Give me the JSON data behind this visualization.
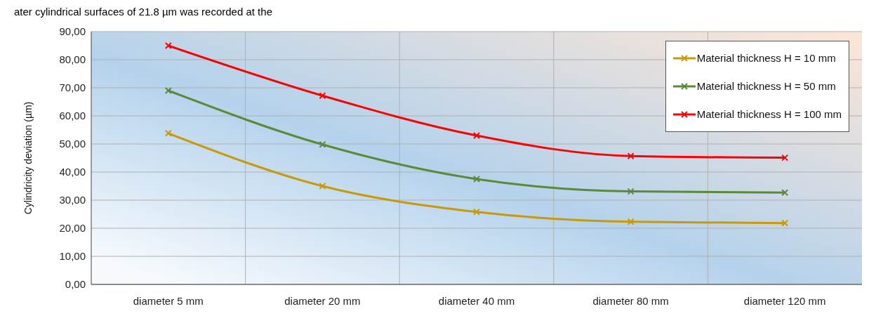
{
  "chart_data": {
    "type": "line",
    "ylabel": "Cylindricity deviation (µm)",
    "annotations": [
      "ater cylindrical surfaces of 21.8 µm was recorded at the"
    ],
    "categories": [
      "diameter 5 mm",
      "diameter 20 mm",
      "diameter 40 mm",
      "diameter 80 mm",
      "diameter 120 mm"
    ],
    "series": [
      {
        "name": "Material thickness H = 10 mm",
        "color": "#c99a06",
        "values": [
          53.8,
          35,
          25.8,
          22.3,
          21.8
        ]
      },
      {
        "name": "Material thickness H = 50 mm",
        "color": "#5a8a36",
        "values": [
          69,
          49.8,
          37.5,
          33.1,
          32.7
        ]
      },
      {
        "name": "Material thickness H = 100 mm",
        "color": "#ff0000",
        "values": [
          85,
          67.2,
          53,
          45.7,
          45.1
        ]
      }
    ],
    "ylim": [
      0,
      90
    ],
    "yticks": [
      {
        "value": 0,
        "label": "0,00"
      },
      {
        "value": 10,
        "label": "10,00"
      },
      {
        "value": 20,
        "label": "20,00"
      },
      {
        "value": 30,
        "label": "30,00"
      },
      {
        "value": 40,
        "label": "40,00"
      },
      {
        "value": 50,
        "label": "50,00"
      },
      {
        "value": 60,
        "label": "60,00"
      },
      {
        "value": 70,
        "label": "70,00"
      },
      {
        "value": 80,
        "label": "80,00"
      },
      {
        "value": 90,
        "label": "90,00"
      }
    ],
    "grid": true,
    "legend": "top right",
    "marker": "cross",
    "line_style": "solid"
  }
}
